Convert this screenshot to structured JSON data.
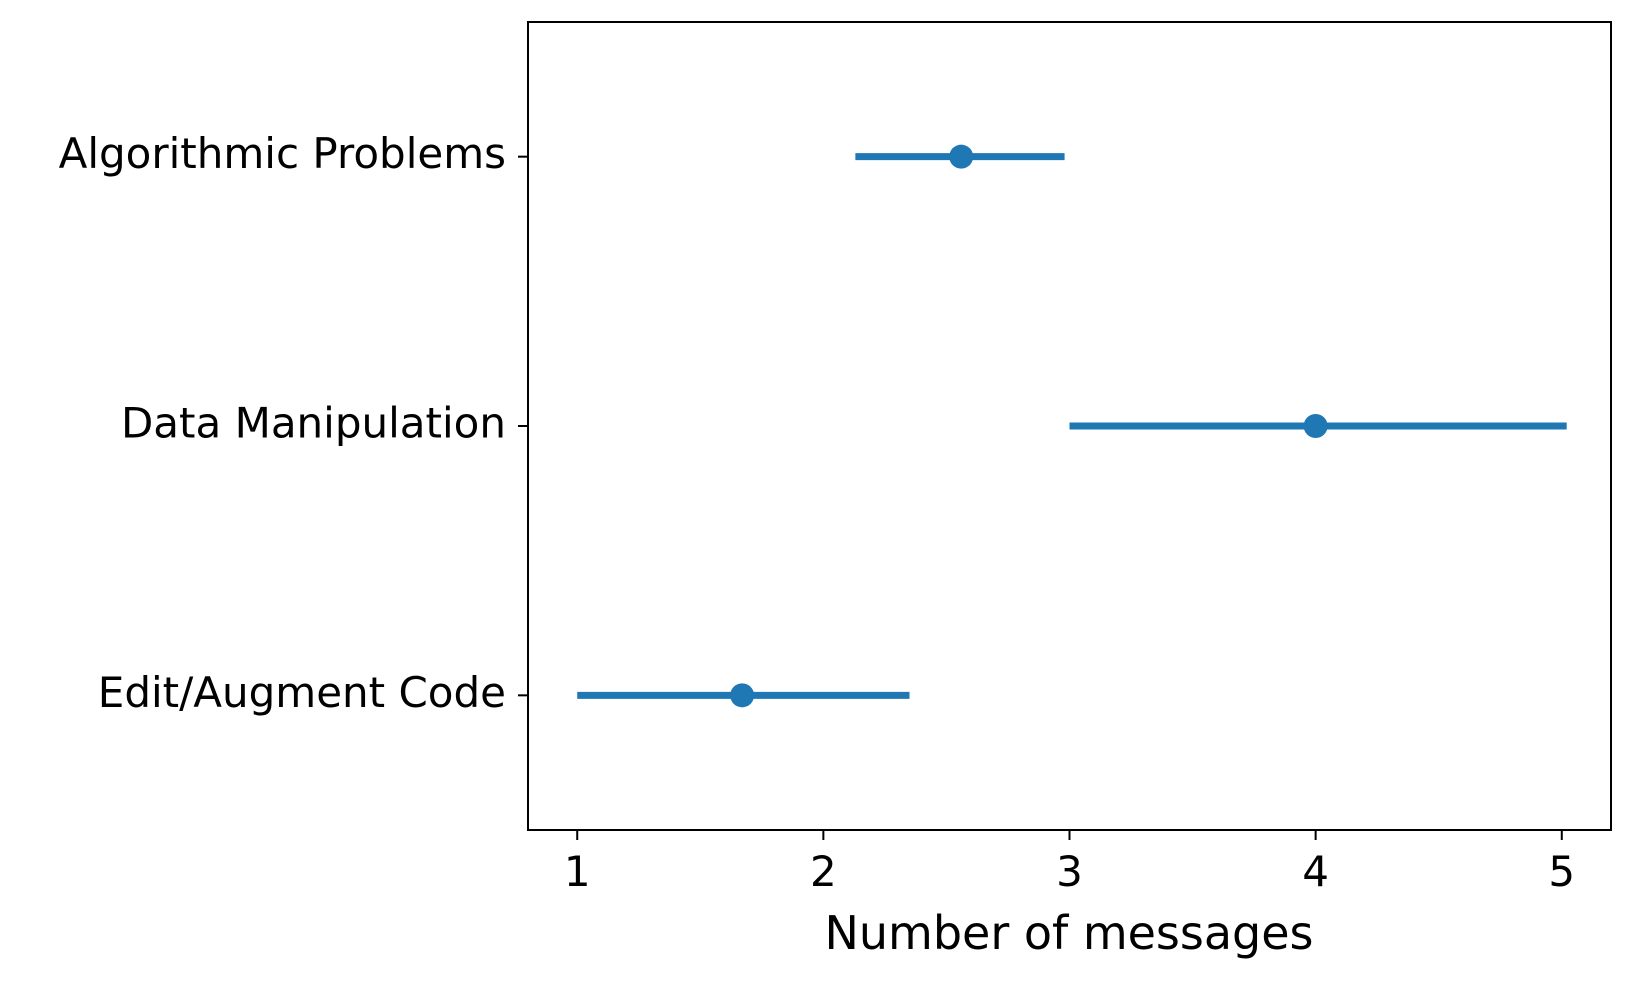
{
  "chart_data": {
    "type": "errorbar",
    "orientation": "horizontal",
    "title": "",
    "xlabel": "Number of messages",
    "ylabel": "",
    "xlim": [
      0.8,
      5.2
    ],
    "xticks": [
      1,
      2,
      3,
      4,
      5
    ],
    "xtick_labels": [
      "1",
      "2",
      "3",
      "4",
      "5"
    ],
    "grid": false,
    "legend": "none",
    "color": "#1f77b4",
    "categories": [
      "Algorithmic Problems",
      "Data Manipulation",
      "Edit/Augment Code"
    ],
    "points": [
      {
        "category": "Algorithmic Problems",
        "value": 2.56,
        "low": 2.13,
        "high": 2.98
      },
      {
        "category": "Data Manipulation",
        "value": 4.0,
        "low": 3.0,
        "high": 5.02
      },
      {
        "category": "Edit/Augment Code",
        "value": 1.67,
        "low": 1.0,
        "high": 2.35
      }
    ]
  }
}
